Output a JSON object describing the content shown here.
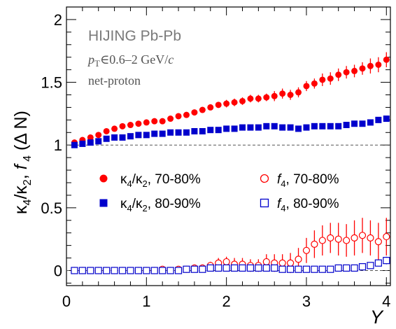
{
  "chart_data": {
    "type": "scatter",
    "title": "HIJING Pb-Pb",
    "subtitle_lines": [
      "p_T∈0.6–2 GeV/c",
      "net-proton"
    ],
    "xlabel": "Y",
    "ylabel": "κ₄/κ₂, f₄ (Δ N)",
    "xlim": [
      0,
      4.05
    ],
    "ylim": [
      -0.12,
      2.1
    ],
    "x_ticks": [
      "0",
      "1",
      "2",
      "3",
      "4"
    ],
    "y_ticks": [
      "0",
      "0.5",
      "1",
      "1.5",
      "2"
    ],
    "reference_line": 1.0,
    "grid": false,
    "legend_position": "center-left",
    "series": [
      {
        "name": "κ₄/κ₂, 70-80%",
        "marker": "filled-circle",
        "color": "#ff0000",
        "x": [
          0.1,
          0.2,
          0.3,
          0.4,
          0.5,
          0.6,
          0.7,
          0.8,
          0.9,
          1.0,
          1.1,
          1.2,
          1.3,
          1.4,
          1.5,
          1.6,
          1.7,
          1.8,
          1.9,
          2.0,
          2.1,
          2.2,
          2.3,
          2.4,
          2.5,
          2.6,
          2.7,
          2.8,
          2.9,
          3.0,
          3.1,
          3.2,
          3.3,
          3.4,
          3.5,
          3.6,
          3.7,
          3.8,
          3.9,
          4.0
        ],
        "y": [
          1.02,
          1.04,
          1.06,
          1.08,
          1.11,
          1.13,
          1.15,
          1.16,
          1.17,
          1.18,
          1.19,
          1.19,
          1.21,
          1.23,
          1.24,
          1.26,
          1.28,
          1.3,
          1.32,
          1.33,
          1.34,
          1.35,
          1.37,
          1.37,
          1.38,
          1.39,
          1.41,
          1.4,
          1.42,
          1.47,
          1.49,
          1.52,
          1.53,
          1.56,
          1.58,
          1.59,
          1.61,
          1.63,
          1.64,
          1.68
        ],
        "err": [
          0.01,
          0.01,
          0.01,
          0.01,
          0.01,
          0.01,
          0.01,
          0.01,
          0.01,
          0.01,
          0.01,
          0.01,
          0.01,
          0.02,
          0.02,
          0.02,
          0.02,
          0.02,
          0.02,
          0.03,
          0.03,
          0.03,
          0.03,
          0.03,
          0.03,
          0.04,
          0.04,
          0.04,
          0.04,
          0.04,
          0.04,
          0.05,
          0.05,
          0.05,
          0.05,
          0.05,
          0.05,
          0.06,
          0.06,
          0.06
        ]
      },
      {
        "name": "κ₄/κ₂, 80-90%",
        "marker": "filled-square",
        "color": "#0000cc",
        "x": [
          0.1,
          0.2,
          0.3,
          0.4,
          0.5,
          0.6,
          0.7,
          0.8,
          0.9,
          1.0,
          1.1,
          1.2,
          1.3,
          1.4,
          1.5,
          1.6,
          1.7,
          1.8,
          1.9,
          2.0,
          2.1,
          2.2,
          2.3,
          2.4,
          2.5,
          2.6,
          2.7,
          2.8,
          2.9,
          3.0,
          3.1,
          3.2,
          3.3,
          3.4,
          3.5,
          3.6,
          3.7,
          3.8,
          3.9,
          4.0
        ],
        "y": [
          1.0,
          1.01,
          1.02,
          1.03,
          1.05,
          1.06,
          1.06,
          1.07,
          1.08,
          1.08,
          1.09,
          1.09,
          1.1,
          1.1,
          1.1,
          1.11,
          1.11,
          1.12,
          1.12,
          1.13,
          1.13,
          1.14,
          1.14,
          1.14,
          1.15,
          1.15,
          1.14,
          1.14,
          1.13,
          1.14,
          1.15,
          1.15,
          1.15,
          1.15,
          1.16,
          1.17,
          1.17,
          1.18,
          1.2,
          1.21
        ],
        "err": [
          0.01,
          0.01,
          0.01,
          0.01,
          0.01,
          0.01,
          0.01,
          0.01,
          0.01,
          0.01,
          0.01,
          0.01,
          0.01,
          0.01,
          0.01,
          0.01,
          0.01,
          0.01,
          0.01,
          0.01,
          0.01,
          0.01,
          0.01,
          0.01,
          0.01,
          0.01,
          0.01,
          0.01,
          0.01,
          0.01,
          0.01,
          0.01,
          0.01,
          0.02,
          0.02,
          0.02,
          0.02,
          0.02,
          0.02,
          0.02
        ]
      },
      {
        "name": "f₄, 70-80%",
        "marker": "open-circle",
        "color": "#ff0000",
        "x": [
          0.1,
          0.2,
          0.3,
          0.4,
          0.5,
          0.6,
          0.7,
          0.8,
          0.9,
          1.0,
          1.1,
          1.2,
          1.3,
          1.4,
          1.5,
          1.6,
          1.7,
          1.8,
          1.9,
          2.0,
          2.1,
          2.2,
          2.3,
          2.4,
          2.5,
          2.6,
          2.7,
          2.8,
          2.9,
          3.0,
          3.1,
          3.2,
          3.3,
          3.4,
          3.5,
          3.6,
          3.7,
          3.8,
          3.9,
          4.0
        ],
        "y": [
          0.0,
          0.0,
          0.0,
          0.0,
          0.0,
          0.0,
          0.0,
          0.0,
          0.0,
          0.0,
          0.0,
          0.01,
          0.0,
          0.01,
          0.01,
          0.02,
          0.02,
          0.04,
          0.06,
          0.07,
          0.05,
          0.05,
          0.04,
          0.04,
          0.07,
          0.06,
          0.06,
          0.06,
          0.09,
          0.16,
          0.21,
          0.24,
          0.26,
          0.25,
          0.24,
          0.26,
          0.28,
          0.26,
          0.23,
          0.27
        ],
        "err": [
          0.0,
          0.0,
          0.0,
          0.0,
          0.0,
          0.0,
          0.0,
          0.0,
          0.0,
          0.0,
          0.01,
          0.01,
          0.01,
          0.01,
          0.01,
          0.02,
          0.02,
          0.03,
          0.04,
          0.04,
          0.05,
          0.05,
          0.05,
          0.05,
          0.06,
          0.07,
          0.07,
          0.08,
          0.09,
          0.1,
          0.11,
          0.12,
          0.12,
          0.13,
          0.13,
          0.14,
          0.14,
          0.14,
          0.15,
          0.15
        ]
      },
      {
        "name": "f₄, 80-90%",
        "marker": "open-square",
        "color": "#0000cc",
        "x": [
          0.1,
          0.2,
          0.3,
          0.4,
          0.5,
          0.6,
          0.7,
          0.8,
          0.9,
          1.0,
          1.1,
          1.2,
          1.3,
          1.4,
          1.5,
          1.6,
          1.7,
          1.8,
          1.9,
          2.0,
          2.1,
          2.2,
          2.3,
          2.4,
          2.5,
          2.6,
          2.7,
          2.8,
          2.9,
          3.0,
          3.1,
          3.2,
          3.3,
          3.4,
          3.5,
          3.6,
          3.7,
          3.8,
          3.9,
          4.0
        ],
        "y": [
          0.0,
          0.0,
          0.0,
          0.0,
          0.0,
          0.0,
          0.0,
          0.0,
          0.0,
          0.0,
          0.0,
          0.0,
          0.0,
          0.0,
          0.01,
          0.01,
          0.01,
          0.02,
          0.02,
          0.02,
          0.02,
          0.02,
          0.02,
          0.02,
          0.02,
          0.02,
          0.01,
          0.01,
          0.01,
          0.01,
          0.01,
          0.01,
          0.01,
          0.02,
          0.02,
          0.02,
          0.03,
          0.04,
          0.06,
          0.08
        ],
        "err": [
          0.0,
          0.0,
          0.0,
          0.0,
          0.0,
          0.0,
          0.0,
          0.0,
          0.0,
          0.0,
          0.0,
          0.0,
          0.0,
          0.0,
          0.0,
          0.0,
          0.01,
          0.01,
          0.01,
          0.01,
          0.01,
          0.01,
          0.01,
          0.01,
          0.01,
          0.01,
          0.01,
          0.01,
          0.01,
          0.01,
          0.01,
          0.01,
          0.01,
          0.01,
          0.01,
          0.01,
          0.02,
          0.02,
          0.02,
          0.03
        ]
      }
    ]
  }
}
